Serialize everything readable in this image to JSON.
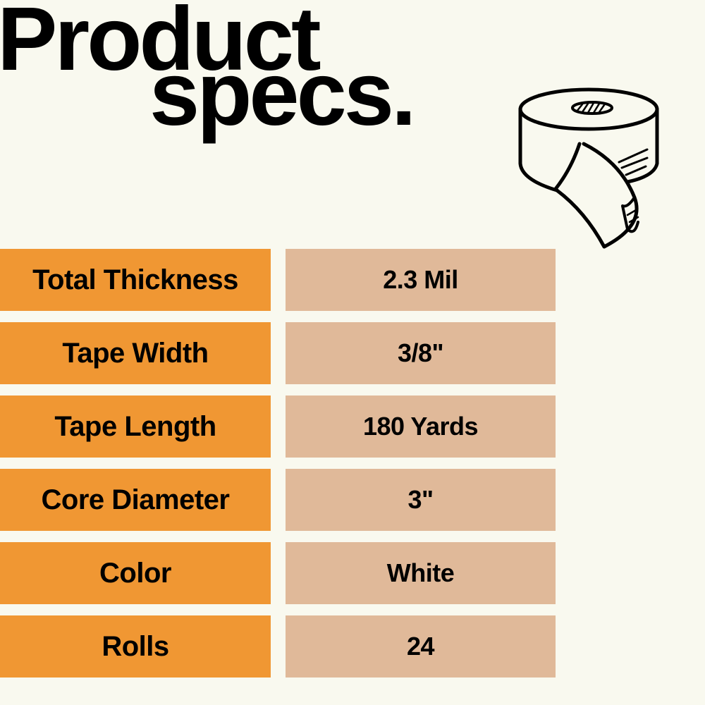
{
  "title": {
    "line1": "Product",
    "line2": "specs."
  },
  "illustration": {
    "icon": "tape-roll-icon"
  },
  "colors": {
    "background": "#f9f9ef",
    "label_bg": "#f09733",
    "value_bg": "#e0b999"
  },
  "specs": [
    {
      "label": "Total Thickness",
      "value": "2.3 Mil"
    },
    {
      "label": "Tape Width",
      "value": "3/8\""
    },
    {
      "label": "Tape Length",
      "value": "180 Yards"
    },
    {
      "label": "Core Diameter",
      "value": "3\""
    },
    {
      "label": "Color",
      "value": "White"
    },
    {
      "label": "Rolls",
      "value": "24"
    }
  ]
}
